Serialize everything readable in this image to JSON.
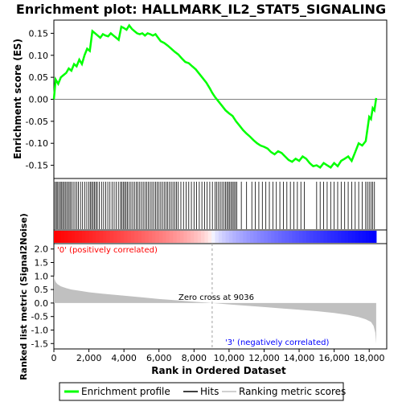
{
  "chart_data": {
    "type": "line",
    "title": "Enrichment plot: HALLMARK_IL2_STAT5_SIGNALING",
    "xlabel": "Rank in Ordered Dataset",
    "xlim": [
      0,
      19000
    ],
    "x_ticks": [
      "0",
      "2,000",
      "4,000",
      "6,000",
      "8,000",
      "10,000",
      "12,000",
      "14,000",
      "16,000",
      "18,000"
    ],
    "es_panel": {
      "ylabel": "Enrichment score (ES)",
      "ylim": [
        -0.18,
        0.18
      ],
      "y_ticks": [
        "0.15",
        "0.10",
        "0.05",
        "0.00",
        "-0.05",
        "-0.10",
        "-0.15"
      ],
      "series": [
        {
          "name": "Enrichment profile",
          "color": "#00ff00",
          "x": [
            0,
            100,
            250,
            400,
            550,
            700,
            850,
            1000,
            1150,
            1300,
            1450,
            1600,
            1750,
            1900,
            2050,
            2200,
            2350,
            2500,
            2650,
            2800,
            2950,
            3100,
            3250,
            3400,
            3550,
            3700,
            3850,
            4000,
            4150,
            4300,
            4450,
            4600,
            4750,
            4900,
            5050,
            5200,
            5350,
            5500,
            5650,
            5800,
            5950,
            6100,
            6300,
            6500,
            6700,
            6900,
            7100,
            7300,
            7500,
            7700,
            7900,
            8100,
            8300,
            8500,
            8700,
            8900,
            9036,
            9200,
            9400,
            9600,
            9800,
            10000,
            10200,
            10400,
            10600,
            10800,
            11000,
            11200,
            11400,
            11600,
            11800,
            12000,
            12200,
            12400,
            12600,
            12800,
            13000,
            13200,
            13400,
            13600,
            13800,
            14000,
            14200,
            14400,
            14600,
            14800,
            15000,
            15200,
            15400,
            15600,
            15800,
            16000,
            16200,
            16400,
            16600,
            16800,
            17000,
            17200,
            17400,
            17600,
            17800,
            18000,
            18100,
            18200,
            18300,
            18400
          ],
          "values": [
            0.0,
            0.045,
            0.035,
            0.05,
            0.055,
            0.06,
            0.07,
            0.065,
            0.08,
            0.075,
            0.09,
            0.08,
            0.1,
            0.115,
            0.11,
            0.155,
            0.15,
            0.145,
            0.14,
            0.148,
            0.145,
            0.143,
            0.15,
            0.145,
            0.14,
            0.135,
            0.165,
            0.162,
            0.158,
            0.168,
            0.16,
            0.155,
            0.15,
            0.148,
            0.15,
            0.145,
            0.15,
            0.148,
            0.145,
            0.148,
            0.14,
            0.132,
            0.128,
            0.122,
            0.115,
            0.108,
            0.102,
            0.093,
            0.085,
            0.082,
            0.075,
            0.068,
            0.058,
            0.048,
            0.038,
            0.025,
            0.015,
            0.005,
            -0.005,
            -0.015,
            -0.025,
            -0.032,
            -0.038,
            -0.05,
            -0.06,
            -0.07,
            -0.078,
            -0.085,
            -0.093,
            -0.1,
            -0.105,
            -0.108,
            -0.112,
            -0.12,
            -0.125,
            -0.118,
            -0.122,
            -0.13,
            -0.138,
            -0.142,
            -0.135,
            -0.14,
            -0.13,
            -0.135,
            -0.145,
            -0.152,
            -0.15,
            -0.155,
            -0.145,
            -0.15,
            -0.155,
            -0.145,
            -0.152,
            -0.14,
            -0.135,
            -0.13,
            -0.14,
            -0.12,
            -0.1,
            -0.105,
            -0.095,
            -0.04,
            -0.045,
            -0.02,
            -0.025,
            0.003
          ]
        }
      ]
    },
    "hits_panel": {
      "label": "Hits",
      "hit_ranks": [
        80,
        150,
        220,
        300,
        380,
        450,
        520,
        600,
        680,
        760,
        840,
        920,
        1000,
        1100,
        1200,
        1300,
        1400,
        1520,
        1640,
        1760,
        1880,
        2000,
        2080,
        2160,
        2240,
        2320,
        2400,
        2480,
        2600,
        2720,
        2840,
        2960,
        3080,
        3200,
        3320,
        3440,
        3560,
        3680,
        3800,
        3880,
        3960,
        4040,
        4120,
        4200,
        4300,
        4400,
        4500,
        4600,
        4700,
        4800,
        4900,
        5000,
        5100,
        5200,
        5300,
        5400,
        5500,
        5600,
        5700,
        5800,
        5900,
        6000,
        6100,
        6200,
        6300,
        6400,
        6500,
        6600,
        6700,
        6800,
        6900,
        7000,
        7100,
        7250,
        7400,
        7550,
        7700,
        7850,
        8000,
        8150,
        8300,
        8450,
        8600,
        8750,
        8900,
        9050,
        9200,
        9300,
        9400,
        9500,
        9600,
        9700,
        9800,
        9880,
        9960,
        10040,
        10120,
        10200,
        10280,
        10360,
        10440,
        10700,
        11000,
        11300,
        11500,
        11700,
        11900,
        12100,
        12300,
        12500,
        12700,
        12900,
        13100,
        13300,
        13500,
        13700,
        13900,
        14100,
        14300,
        15000,
        15200,
        15400,
        15600,
        15800,
        16000,
        16200,
        16400,
        16600,
        16800,
        17000,
        17200,
        17400,
        17600,
        17800,
        17900,
        18000,
        18100,
        18200,
        18300
      ]
    },
    "metric_panel": {
      "ylabel": "Ranked list metric (Signal2Noise)",
      "ylim": [
        -1.7,
        2.2
      ],
      "y_ticks": [
        "2.0",
        "1.5",
        "1.0",
        "0.5",
        "0.0",
        "-0.5",
        "-1.0",
        "-1.5"
      ],
      "zero_cross_label": "Zero cross at 9036",
      "zero_cross": 9036,
      "pos_label": "'0' (positively correlated)",
      "neg_label": "'3' (negatively correlated)",
      "pos_color": "#ff0000",
      "neg_color": "#0000ff",
      "x": [
        0,
        30,
        100,
        200,
        400,
        700,
        1000,
        1500,
        2000,
        3000,
        4000,
        5000,
        6000,
        7000,
        8000,
        9036,
        10000,
        11000,
        12000,
        13000,
        14000,
        15000,
        16000,
        16800,
        17400,
        17800,
        18100,
        18250,
        18350,
        18400
      ],
      "values": [
        1.05,
        0.9,
        0.78,
        0.7,
        0.62,
        0.55,
        0.5,
        0.45,
        0.4,
        0.33,
        0.27,
        0.21,
        0.15,
        0.1,
        0.05,
        0.0,
        -0.05,
        -0.1,
        -0.15,
        -0.2,
        -0.25,
        -0.3,
        -0.37,
        -0.44,
        -0.52,
        -0.6,
        -0.7,
        -0.85,
        -1.1,
        -1.5
      ]
    },
    "legend": [
      {
        "label": "Enrichment profile",
        "color": "#00ff00"
      },
      {
        "label": "Hits",
        "color": "#000000"
      },
      {
        "label": "Ranking metric scores",
        "color": "#c0c0c0"
      }
    ]
  }
}
